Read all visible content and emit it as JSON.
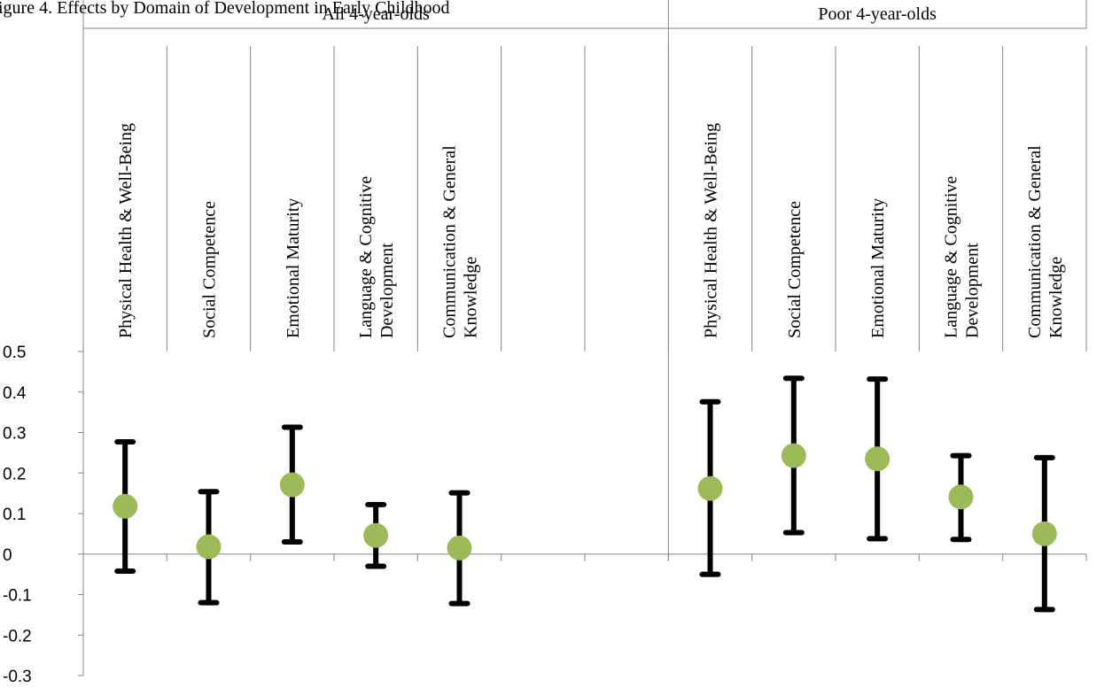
{
  "caption": "igure 4. Effects by Domain of Development in Early Childhood",
  "chart_data": {
    "type": "scatter",
    "error_bars": true,
    "ylim": [
      -0.3,
      0.5
    ],
    "yticks": [
      -0.3,
      -0.2,
      -0.1,
      0,
      0.1,
      0.2,
      0.3,
      0.4,
      0.5
    ],
    "ytick_labels": [
      "-0.3",
      "-0.2",
      "-0.1",
      "0",
      "0.1",
      "0.2",
      "0.3",
      "0.4",
      "0.5"
    ],
    "groups": [
      {
        "label": "All 4-year-olds",
        "categories": [
          {
            "lines": [
              "Physical Health & Well-Being"
            ],
            "value": 0.118,
            "low": -0.042,
            "high": 0.277
          },
          {
            "lines": [
              "Social Competence"
            ],
            "value": 0.018,
            "low": -0.12,
            "high": 0.154
          },
          {
            "lines": [
              "Emotional Maturity"
            ],
            "value": 0.171,
            "low": 0.03,
            "high": 0.313
          },
          {
            "lines": [
              "Language & Cognitive",
              "Development"
            ],
            "value": 0.046,
            "low": -0.03,
            "high": 0.122
          },
          {
            "lines": [
              "Communication & General",
              "Knowledge"
            ],
            "value": 0.015,
            "low": -0.122,
            "high": 0.151
          },
          {
            "lines": [],
            "value": null,
            "low": null,
            "high": null
          },
          {
            "lines": [],
            "value": null,
            "low": null,
            "high": null
          }
        ]
      },
      {
        "label": "Poor 4-year-olds",
        "categories": [
          {
            "lines": [
              "Physical Health & Well-Being"
            ],
            "value": 0.162,
            "low": -0.05,
            "high": 0.376
          },
          {
            "lines": [
              "Social Competence"
            ],
            "value": 0.243,
            "low": 0.053,
            "high": 0.434
          },
          {
            "lines": [
              "Emotional Maturity"
            ],
            "value": 0.235,
            "low": 0.038,
            "high": 0.432
          },
          {
            "lines": [
              "Language & Cognitive",
              "Development"
            ],
            "value": 0.141,
            "low": 0.036,
            "high": 0.243
          },
          {
            "lines": [
              "Communication & General",
              "Knowledge"
            ],
            "value": 0.05,
            "low": -0.137,
            "high": 0.238
          }
        ]
      }
    ],
    "colors": {
      "marker": "#9bbb59",
      "error_bar": "#000000",
      "axis": "#868686"
    }
  }
}
